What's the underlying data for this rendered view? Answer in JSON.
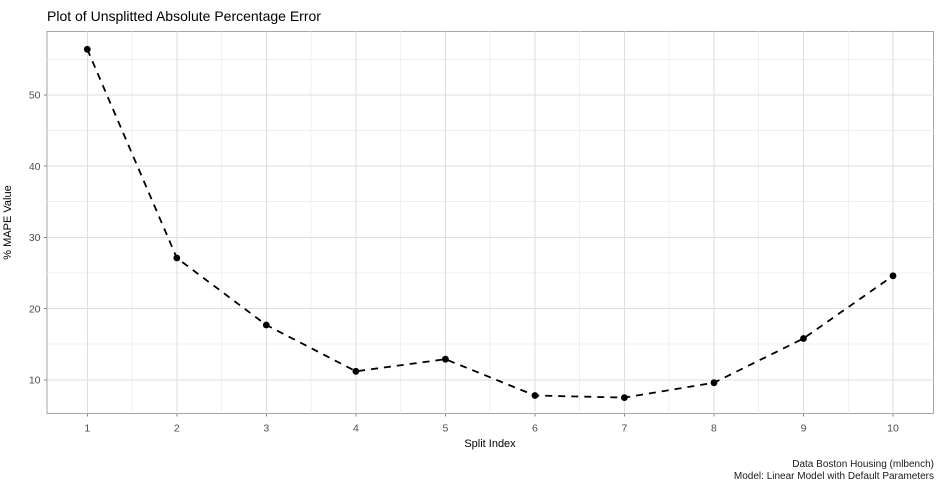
{
  "title": "Plot of Unsplitted Absolute Percentage Error",
  "caption": {
    "line1": "Data Boston Housing (mlbench)",
    "line2": "Model: Linear Model with Default Parameters"
  },
  "chart_data": {
    "type": "line",
    "title": "Plot of Unsplitted Absolute Percentage Error",
    "xlabel": "Split Index",
    "ylabel": "% MAPE Value",
    "x": [
      1,
      2,
      3,
      4,
      5,
      6,
      7,
      8,
      9,
      10
    ],
    "series": [
      {
        "name": "Unsplitted Absolute Percentage Error",
        "values": [
          56.4,
          27.1,
          17.7,
          11.2,
          12.9,
          7.8,
          7.5,
          9.6,
          15.8,
          24.6
        ]
      }
    ],
    "xlim": [
      0.55,
      10.45
    ],
    "ylim": [
      5.3,
      58.9
    ],
    "x_major_ticks": [
      1,
      2,
      3,
      4,
      5,
      6,
      7,
      8,
      9,
      10
    ],
    "x_minor_ticks": [
      1.5,
      2.5,
      3.5,
      4.5,
      5.5,
      6.5,
      7.5,
      8.5,
      9.5
    ],
    "y_major_ticks": [
      10,
      20,
      30,
      40,
      50
    ],
    "y_minor_ticks": [
      15,
      25,
      35,
      45,
      55
    ],
    "grid": true,
    "legend": "none",
    "line_style": "dashed",
    "marker": "circle"
  },
  "colors": {
    "background": "#ffffff",
    "panel_background": "#ffffff",
    "panel_border": "#a6a6a6",
    "grid_major": "#dedede",
    "grid_minor": "#efefef",
    "tick_mark": "#858585",
    "tick_label": "#4d4d4d",
    "series_line": "#000000",
    "series_point": "#000000",
    "title_text": "#000000"
  }
}
